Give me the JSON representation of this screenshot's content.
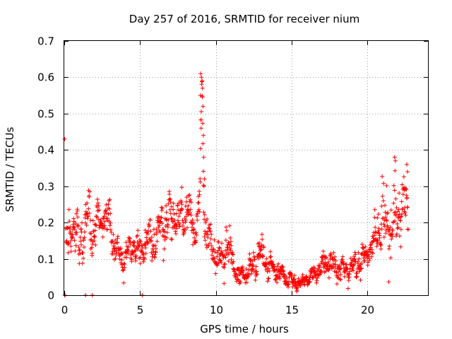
{
  "chart_data": {
    "type": "scatter",
    "title": "Day 257 of 2016, SRMTID for receiver nium",
    "xlabel": "GPS time / hours",
    "ylabel": "SRMTID / TECUs",
    "xlim": [
      0,
      24
    ],
    "ylim": [
      0,
      0.7
    ],
    "x_ticks": [
      0,
      5,
      10,
      15,
      20
    ],
    "x_tick_labels": [
      "0",
      "5",
      "10",
      "15",
      "20"
    ],
    "y_ticks": [
      0,
      0.1,
      0.2,
      0.3,
      0.4,
      0.5,
      0.6,
      0.7
    ],
    "y_tick_labels": [
      "0",
      "0.1",
      "0.2",
      "0.3",
      "0.4",
      "0.5",
      "0.6",
      "0.7"
    ],
    "grid": true,
    "marker": "+",
    "series_color": "#ff0000",
    "profile_hours": [
      0.0,
      0.3,
      0.5,
      1.0,
      1.5,
      2.0,
      2.5,
      3.0,
      3.3,
      3.8,
      4.2,
      4.6,
      5.0,
      5.3,
      5.6,
      6.0,
      6.4,
      6.8,
      7.2,
      7.6,
      8.0,
      8.3,
      8.6,
      8.9,
      9.1,
      9.3,
      9.6,
      10.0,
      10.4,
      10.8,
      11.2,
      11.6,
      12.0,
      12.5,
      13.0,
      13.4,
      13.8,
      14.2,
      14.6,
      15.0,
      15.4,
      15.8,
      16.2,
      16.6,
      17.0,
      17.4,
      17.8,
      18.2,
      18.6,
      19.0,
      19.4,
      19.8,
      20.2,
      20.6,
      21.0,
      21.3,
      21.6,
      21.9,
      22.2,
      22.5,
      22.7
    ],
    "profile_srmtid": [
      0.17,
      0.15,
      0.2,
      0.14,
      0.21,
      0.18,
      0.22,
      0.2,
      0.13,
      0.1,
      0.12,
      0.13,
      0.12,
      0.15,
      0.16,
      0.14,
      0.2,
      0.2,
      0.23,
      0.2,
      0.24,
      0.21,
      0.18,
      0.25,
      0.5,
      0.2,
      0.14,
      0.11,
      0.09,
      0.15,
      0.07,
      0.05,
      0.06,
      0.08,
      0.12,
      0.08,
      0.07,
      0.06,
      0.05,
      0.04,
      0.03,
      0.04,
      0.05,
      0.06,
      0.08,
      0.09,
      0.08,
      0.07,
      0.07,
      0.08,
      0.09,
      0.1,
      0.13,
      0.17,
      0.2,
      0.22,
      0.18,
      0.21,
      0.24,
      0.25,
      0.22
    ],
    "profile_spread": [
      0.04,
      0.06,
      0.05,
      0.06,
      0.07,
      0.05,
      0.06,
      0.05,
      0.04,
      0.04,
      0.03,
      0.03,
      0.04,
      0.04,
      0.04,
      0.04,
      0.06,
      0.06,
      0.06,
      0.05,
      0.06,
      0.05,
      0.05,
      0.07,
      0.12,
      0.08,
      0.05,
      0.04,
      0.05,
      0.07,
      0.03,
      0.02,
      0.02,
      0.04,
      0.05,
      0.04,
      0.03,
      0.02,
      0.02,
      0.02,
      0.015,
      0.015,
      0.02,
      0.02,
      0.025,
      0.03,
      0.03,
      0.03,
      0.03,
      0.03,
      0.03,
      0.03,
      0.03,
      0.05,
      0.08,
      0.09,
      0.08,
      0.08,
      0.08,
      0.07,
      0.05
    ],
    "sample_interval_hours": 0.018,
    "extra_points": [
      [
        0.02,
        0.43
      ],
      [
        0.02,
        0.0
      ],
      [
        0.05,
        0.0
      ],
      [
        1.4,
        0.0
      ],
      [
        1.85,
        0.0
      ],
      [
        5.15,
        0.0
      ],
      [
        9.0,
        0.61
      ],
      [
        9.05,
        0.6
      ],
      [
        9.1,
        0.59
      ],
      [
        9.12,
        0.57
      ],
      [
        8.98,
        0.55
      ],
      [
        9.15,
        0.52
      ],
      [
        9.03,
        0.46
      ],
      [
        9.18,
        0.44
      ],
      [
        9.2,
        0.38
      ],
      [
        9.25,
        0.32
      ],
      [
        9.22,
        0.3
      ],
      [
        21.8,
        0.38
      ],
      [
        21.85,
        0.37
      ],
      [
        22.6,
        0.36
      ],
      [
        22.65,
        0.34
      ]
    ]
  }
}
